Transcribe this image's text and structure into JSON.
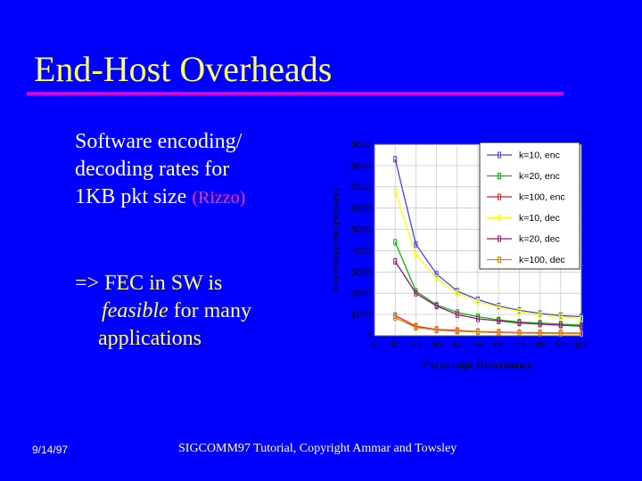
{
  "slide": {
    "title": "End-Host Overheads",
    "bullet1": {
      "line1": "Software encoding/",
      "line2": "decoding rates for",
      "line3": "1KB pkt size",
      "citation": "(Rizzo)"
    },
    "bullet2": {
      "arrow": "=> FEC in SW is",
      "feasible": "feasible",
      "rest": " for many",
      "line3": "applications"
    },
    "footer": {
      "date": "9/14/97",
      "copyright": "SIGCOMM97 Tutorial, Copyright Ammar and Towsley"
    }
  },
  "colors": {
    "background": "#0000ff",
    "title": "#ffff66",
    "rule": "#e000e0",
    "citation": "#ff3399"
  },
  "chart_data": {
    "type": "line",
    "title": "",
    "xlabel": "Percentage Redundancy",
    "ylabel": "Processing rate (pkts/sec)",
    "xlim": [
      0,
      100
    ],
    "ylim": [
      0,
      9000
    ],
    "xticks": [
      0,
      10,
      20,
      30,
      40,
      50,
      60,
      70,
      80,
      90,
      100
    ],
    "yticks": [
      0,
      1000,
      2000,
      3000,
      4000,
      5000,
      6000,
      7000,
      8000,
      9000
    ],
    "x": [
      10,
      20,
      30,
      40,
      50,
      60,
      70,
      80,
      90,
      100
    ],
    "legend_position": "top-right",
    "series": [
      {
        "name": "k=10, enc",
        "color": "#4040ff",
        "values": [
          8300,
          4300,
          2900,
          2100,
          1700,
          1400,
          1200,
          1050,
          950,
          900
        ]
      },
      {
        "name": "k=20, enc",
        "color": "#00c000",
        "values": [
          4400,
          2100,
          1450,
          1100,
          900,
          750,
          650,
          600,
          550,
          500
        ]
      },
      {
        "name": "k=100, enc",
        "color": "#e02020",
        "values": [
          950,
          450,
          300,
          250,
          200,
          170,
          150,
          140,
          130,
          120
        ]
      },
      {
        "name": "k=10, dec",
        "color": "#ffff00",
        "values": [
          6800,
          3800,
          2700,
          2000,
          1600,
          1350,
          1150,
          1000,
          900,
          800
        ]
      },
      {
        "name": "k=20, dec",
        "color": "#a01080",
        "values": [
          3500,
          2000,
          1400,
          1000,
          800,
          700,
          600,
          550,
          500,
          450
        ]
      },
      {
        "name": "k=100, dec",
        "color": "#e08000",
        "values": [
          850,
          400,
          270,
          220,
          180,
          150,
          130,
          120,
          110,
          100
        ]
      }
    ]
  }
}
